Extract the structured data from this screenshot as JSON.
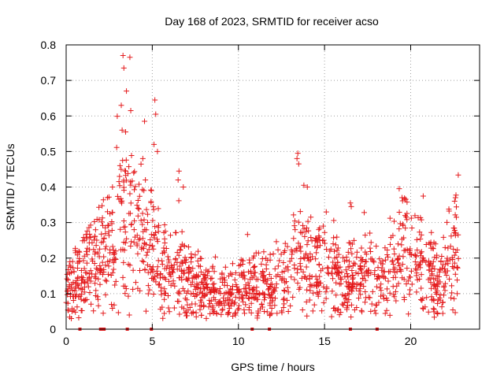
{
  "chart_data": {
    "type": "scatter",
    "title": "Day 168 of 2023, SRMTID for receiver acso",
    "xlabel": "GPS time / hours",
    "ylabel": "SRMTID / TECUs",
    "xlim": [
      0,
      24
    ],
    "ylim": [
      0,
      0.8
    ],
    "x_ticks": [
      0,
      5,
      10,
      15,
      20
    ],
    "x_tick_labels": [
      "0",
      "5",
      "10",
      "15",
      "20"
    ],
    "y_ticks": [
      0,
      0.1,
      0.2,
      0.3,
      0.4,
      0.5,
      0.6,
      0.7,
      0.8
    ],
    "y_tick_labels": [
      "0",
      "0.1",
      "0.2",
      "0.3",
      "0.4",
      "0.5",
      "0.6",
      "0.7",
      "0.8"
    ],
    "grid": true,
    "marker": "+",
    "color": "#e41a1c",
    "trend_profile": {
      "x": [
        0,
        0.5,
        1,
        1.5,
        2,
        2.5,
        3,
        3.5,
        4,
        4.5,
        5,
        5.5,
        6,
        6.5,
        7,
        7.5,
        8,
        9,
        10,
        11,
        12,
        12.5,
        13,
        13.5,
        14,
        14.5,
        15,
        15.5,
        16,
        16.5,
        17,
        17.5,
        18,
        18.5,
        19,
        19.5,
        20,
        20.5,
        21,
        21.5,
        22,
        22.5,
        22.8
      ],
      "y": [
        0.1,
        0.12,
        0.14,
        0.17,
        0.2,
        0.22,
        0.26,
        0.3,
        0.28,
        0.24,
        0.22,
        0.19,
        0.15,
        0.17,
        0.13,
        0.12,
        0.11,
        0.1,
        0.11,
        0.12,
        0.12,
        0.13,
        0.17,
        0.22,
        0.2,
        0.17,
        0.16,
        0.15,
        0.14,
        0.13,
        0.14,
        0.15,
        0.15,
        0.14,
        0.18,
        0.22,
        0.19,
        0.18,
        0.17,
        0.14,
        0.16,
        0.22,
        0.24
      ]
    },
    "outlier_points": [
      {
        "x": 3.3,
        "y": 0.77
      },
      {
        "x": 3.7,
        "y": 0.765
      },
      {
        "x": 3.35,
        "y": 0.735
      },
      {
        "x": 3.5,
        "y": 0.67
      },
      {
        "x": 3.2,
        "y": 0.63
      },
      {
        "x": 3.75,
        "y": 0.615
      },
      {
        "x": 5.15,
        "y": 0.645
      },
      {
        "x": 5.2,
        "y": 0.605
      },
      {
        "x": 4.55,
        "y": 0.585
      },
      {
        "x": 3.25,
        "y": 0.56
      },
      {
        "x": 3.45,
        "y": 0.555
      },
      {
        "x": 5.1,
        "y": 0.52
      },
      {
        "x": 5.3,
        "y": 0.5
      },
      {
        "x": 13.45,
        "y": 0.495
      },
      {
        "x": 4.45,
        "y": 0.48
      },
      {
        "x": 6.55,
        "y": 0.445
      },
      {
        "x": 13.5,
        "y": 0.465
      },
      {
        "x": 13.4,
        "y": 0.48
      },
      {
        "x": 3.1,
        "y": 0.43
      },
      {
        "x": 2.4,
        "y": 0.37
      },
      {
        "x": 13.8,
        "y": 0.405
      },
      {
        "x": 14.0,
        "y": 0.4
      },
      {
        "x": 19.5,
        "y": 0.37
      },
      {
        "x": 19.7,
        "y": 0.365
      },
      {
        "x": 22.6,
        "y": 0.37
      },
      {
        "x": 22.55,
        "y": 0.36
      },
      {
        "x": 16.5,
        "y": 0.355
      },
      {
        "x": 16.55,
        "y": 0.345
      },
      {
        "x": 6.8,
        "y": 0.4
      },
      {
        "x": 6.5,
        "y": 0.42
      },
      {
        "x": 4.6,
        "y": 0.42
      },
      {
        "x": 4.95,
        "y": 0.39
      },
      {
        "x": 15.1,
        "y": 0.33
      },
      {
        "x": 10.85,
        "y": 0.2
      },
      {
        "x": 0.3,
        "y": 0.03
      },
      {
        "x": 8.6,
        "y": 0.05
      },
      {
        "x": 11.5,
        "y": 0.05
      },
      {
        "x": 12.9,
        "y": 0.05
      },
      {
        "x": 22.7,
        "y": 0.1
      }
    ],
    "baseline_markers_x": [
      0.8,
      2.0,
      2.1,
      2.2,
      3.55,
      4.95,
      10.8,
      11.8,
      16.5,
      18.05
    ]
  }
}
